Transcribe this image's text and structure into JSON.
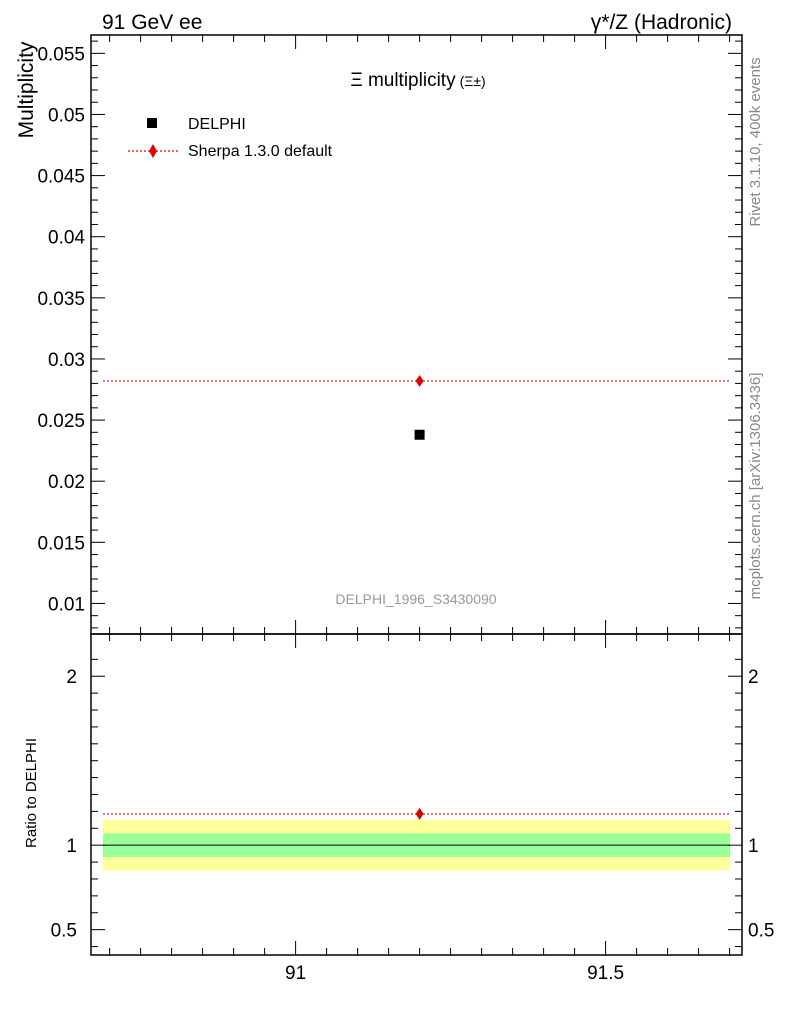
{
  "header": {
    "left": "91 GeV ee",
    "right": "γ*/Z (Hadronic)"
  },
  "side_text": {
    "version": "Rivet 3.1.10,  400k events",
    "site": "mcplots.cern.ch [arXiv:1306.3436]"
  },
  "chart_data": [
    {
      "type": "scatter",
      "title": "Ξ multiplicity",
      "title_suffix": "(Ξ±)",
      "ylabel": "Multiplicity",
      "watermark": "DELPHI_1996_S3430090",
      "xlim": [
        90.67,
        91.72
      ],
      "ylim": [
        0.0075,
        0.0565
      ],
      "yticks": [
        0.01,
        0.015,
        0.02,
        0.025,
        0.03,
        0.035,
        0.04,
        0.045,
        0.05,
        0.055
      ],
      "ytick_labels": [
        "0.01",
        "0.015",
        "0.02",
        "0.025",
        "0.03",
        "0.035",
        "0.04",
        "0.045",
        "0.05",
        "0.055"
      ],
      "legend_position": "top-left",
      "series": [
        {
          "name": "DELPHI",
          "marker": "square",
          "color": "#000000",
          "x": [
            91.2
          ],
          "y": [
            0.0238
          ]
        },
        {
          "name": "Sherpa 1.3.0 default",
          "marker": "diamond",
          "line": "dotted",
          "color": "#e00000",
          "x": [
            91.2
          ],
          "y": [
            0.0282
          ]
        }
      ]
    },
    {
      "type": "scatter",
      "ylabel": "Ratio to DELPHI",
      "xlim": [
        90.67,
        91.72
      ],
      "ylim": [
        0.35,
        2.25
      ],
      "yticks": [
        0.5,
        1,
        2
      ],
      "ytick_labels": [
        "0.5",
        "1",
        "2"
      ],
      "xticks": [
        91,
        91.5
      ],
      "xtick_labels": [
        "91",
        "91.5"
      ],
      "reference": 1.0,
      "band_inner": [
        0.93,
        1.07
      ],
      "band_outer": [
        0.85,
        1.15
      ],
      "band_colors": {
        "inner": "#99ff99",
        "outer": "#ffff99"
      },
      "series": [
        {
          "name": "Sherpa 1.3.0 default",
          "color": "#e00000",
          "x": [
            91.2
          ],
          "y": [
            1.185
          ]
        }
      ]
    }
  ]
}
